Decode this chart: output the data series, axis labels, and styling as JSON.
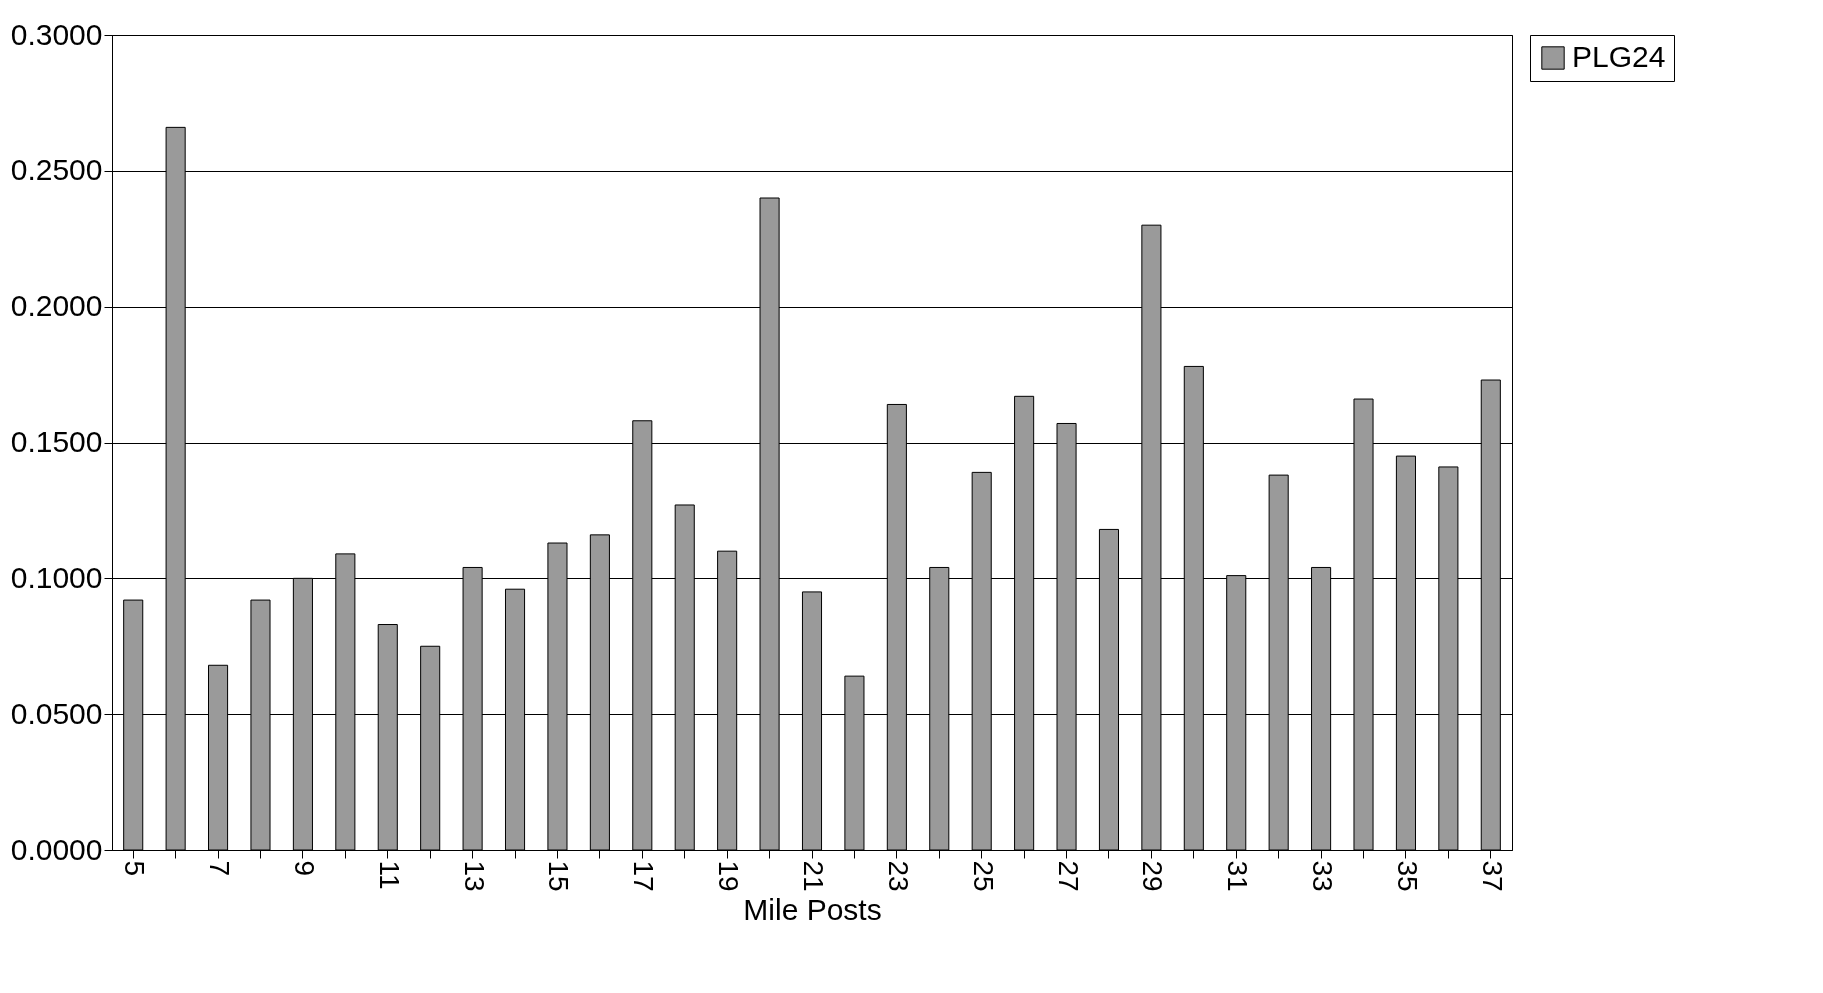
{
  "chart_data": {
    "type": "bar",
    "xlabel": "Mile Posts",
    "categories": [
      "5",
      null,
      "7",
      null,
      "9",
      null,
      "11",
      null,
      "13",
      null,
      "15",
      null,
      "17",
      null,
      "19",
      null,
      "21",
      null,
      "23",
      null,
      "25",
      null,
      "27",
      null,
      "29",
      null,
      "31",
      null,
      "33",
      null,
      "35",
      null,
      "37"
    ],
    "series": [
      {
        "name": "PLG24",
        "color": "#9a9a9a",
        "values": [
          0.092,
          0.266,
          0.068,
          0.092,
          0.1,
          0.109,
          0.083,
          0.075,
          0.104,
          0.096,
          0.113,
          0.116,
          0.158,
          0.127,
          0.11,
          0.24,
          0.095,
          0.064,
          0.164,
          0.104,
          0.139,
          0.167,
          0.157,
          0.118,
          0.23,
          0.178,
          0.101,
          0.138,
          0.104,
          0.166,
          0.145,
          0.141,
          0.173
        ]
      }
    ],
    "ylim": [
      0,
      0.3
    ],
    "yticks": [
      {
        "value": 0,
        "label": "0.0000"
      },
      {
        "value": 0.05,
        "label": "0.0500"
      },
      {
        "value": 0.1,
        "label": "0.1000"
      },
      {
        "value": 0.15,
        "label": "0.1500"
      },
      {
        "value": 0.2,
        "label": "0.2000"
      },
      {
        "value": 0.25,
        "label": "0.2500"
      },
      {
        "value": 0.3,
        "label": "0.3000"
      }
    ],
    "grid": "y",
    "legend": "right"
  }
}
